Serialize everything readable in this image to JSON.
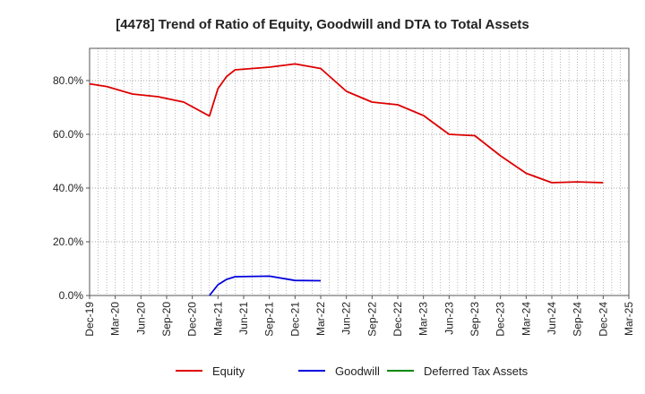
{
  "chart_data": {
    "type": "line",
    "title": "[4478]  Trend of Ratio of Equity, Goodwill and DTA to Total Assets",
    "xlabel": "",
    "ylabel": "",
    "ylim": [
      0,
      92
    ],
    "yticks": [
      0,
      20,
      40,
      60,
      80
    ],
    "ytick_labels": [
      "0.0%",
      "20.0%",
      "40.0%",
      "60.0%",
      "80.0%"
    ],
    "xtick_labels": [
      "Dec-19",
      "Mar-20",
      "Jun-20",
      "Sep-20",
      "Dec-20",
      "Mar-21",
      "Jun-21",
      "Sep-21",
      "Dec-21",
      "Mar-22",
      "Jun-22",
      "Sep-22",
      "Dec-22",
      "Mar-23",
      "Jun-23",
      "Sep-23",
      "Dec-23",
      "Mar-24",
      "Jun-24",
      "Sep-24",
      "Dec-24",
      "Mar-25"
    ],
    "x_unit": "month index from Dec-19",
    "grid": true,
    "legend_position": "bottom",
    "series": [
      {
        "name": "Equity",
        "color": "#dd0000",
        "points": [
          [
            0,
            78.8
          ],
          [
            2,
            77.8
          ],
          [
            5,
            75.0
          ],
          [
            8,
            74.0
          ],
          [
            11,
            72.0
          ],
          [
            14,
            66.8
          ],
          [
            15,
            77.0
          ],
          [
            16,
            81.5
          ],
          [
            17,
            84.0
          ],
          [
            21,
            85.0
          ],
          [
            24,
            86.2
          ],
          [
            27,
            84.5
          ],
          [
            30,
            76.0
          ],
          [
            33,
            72.0
          ],
          [
            36,
            71.0
          ],
          [
            39,
            67.0
          ],
          [
            42,
            60.0
          ],
          [
            45,
            59.5
          ],
          [
            48,
            52.0
          ],
          [
            51,
            45.5
          ],
          [
            54,
            42.0
          ],
          [
            57,
            42.3
          ],
          [
            60,
            42.0
          ]
        ]
      },
      {
        "name": "Goodwill",
        "color": "#0000dd",
        "points": [
          [
            14,
            0.0
          ],
          [
            15,
            4.0
          ],
          [
            16,
            6.0
          ],
          [
            17,
            7.0
          ],
          [
            21,
            7.2
          ],
          [
            24,
            5.6
          ],
          [
            27,
            5.5
          ]
        ]
      },
      {
        "name": "Deferred Tax Assets",
        "color": "#008800",
        "points": []
      }
    ]
  }
}
